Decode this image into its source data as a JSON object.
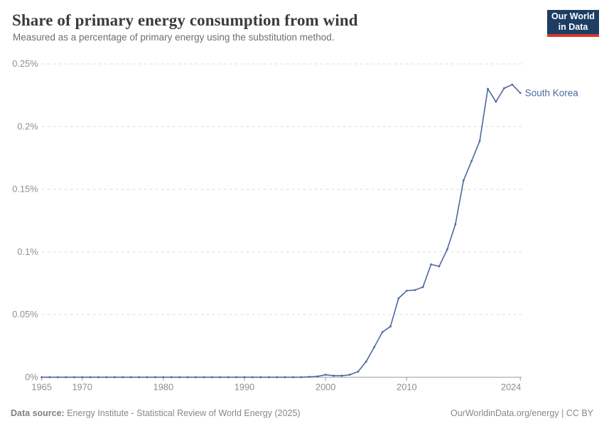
{
  "header": {
    "title": "Share of primary energy consumption from wind",
    "subtitle": "Measured as a percentage of primary energy using the substitution method.",
    "logo": {
      "line1": "Our World",
      "line2": "in Data"
    }
  },
  "footer": {
    "source_label": "Data source:",
    "source_text": " Energy Institute - Statistical Review of World Energy (2025)",
    "credit": "OurWorldinData.org/energy | CC BY"
  },
  "colors": {
    "series_blue": "#4C6A9C",
    "gridline": "#dddddd",
    "axis_line": "#9e9e9e",
    "tick_text": "#8f8f8f",
    "logo_navy": "#1d3d63",
    "logo_red": "#d7382e"
  },
  "chart_data": {
    "type": "line",
    "title": "Share of primary energy consumption from wind",
    "subtitle": "Measured as a percentage of primary energy using the substitution method.",
    "unit": "%",
    "xlabel": "",
    "ylabel": "",
    "xlim": [
      1965,
      2024
    ],
    "ylim": [
      0,
      0.25
    ],
    "grid": "horizontal-dashed",
    "legend_position": "end-of-line-label",
    "entity_label": "South Korea",
    "yticks": [
      {
        "value": 0,
        "label": "0%"
      },
      {
        "value": 0.05,
        "label": "0.05%"
      },
      {
        "value": 0.1,
        "label": "0.1%"
      },
      {
        "value": 0.15,
        "label": "0.15%"
      },
      {
        "value": 0.2,
        "label": "0.2%"
      },
      {
        "value": 0.25,
        "label": "0.25%"
      }
    ],
    "xticks": [
      {
        "value": 1965,
        "label": "1965"
      },
      {
        "value": 1970,
        "label": "1970"
      },
      {
        "value": 1980,
        "label": "1980"
      },
      {
        "value": 1990,
        "label": "1990"
      },
      {
        "value": 2000,
        "label": "2000"
      },
      {
        "value": 2010,
        "label": "2010"
      },
      {
        "value": 2024,
        "label": "2024",
        "label_dx": -13
      }
    ],
    "series": [
      {
        "name": "South Korea",
        "color": "#4C6A9C",
        "x": [
          1965,
          1966,
          1967,
          1968,
          1969,
          1970,
          1971,
          1972,
          1973,
          1974,
          1975,
          1976,
          1977,
          1978,
          1979,
          1980,
          1981,
          1982,
          1983,
          1984,
          1985,
          1986,
          1987,
          1988,
          1989,
          1990,
          1991,
          1992,
          1993,
          1994,
          1995,
          1996,
          1997,
          1998,
          1999,
          2000,
          2001,
          2002,
          2003,
          2004,
          2005,
          2006,
          2007,
          2008,
          2009,
          2010,
          2011,
          2012,
          2013,
          2014,
          2015,
          2016,
          2017,
          2018,
          2019,
          2020,
          2021,
          2022,
          2023,
          2024
        ],
        "values": [
          0,
          0,
          0,
          0,
          0,
          0,
          0,
          0,
          0,
          0,
          0,
          0,
          0,
          0,
          0,
          0,
          0,
          0,
          0,
          0,
          0,
          0,
          0,
          0,
          0,
          0,
          0,
          0,
          0,
          0,
          0,
          0,
          0,
          0.0003,
          0.0006,
          0.002,
          0.0012,
          0.0012,
          0.002,
          0.0045,
          0.0125,
          0.024,
          0.036,
          0.0405,
          0.063,
          0.069,
          0.0695,
          0.072,
          0.09,
          0.0885,
          0.102,
          0.122,
          0.157,
          0.1725,
          0.1885,
          0.2302,
          0.2198,
          0.2305,
          0.2335,
          0.2268
        ]
      }
    ]
  }
}
